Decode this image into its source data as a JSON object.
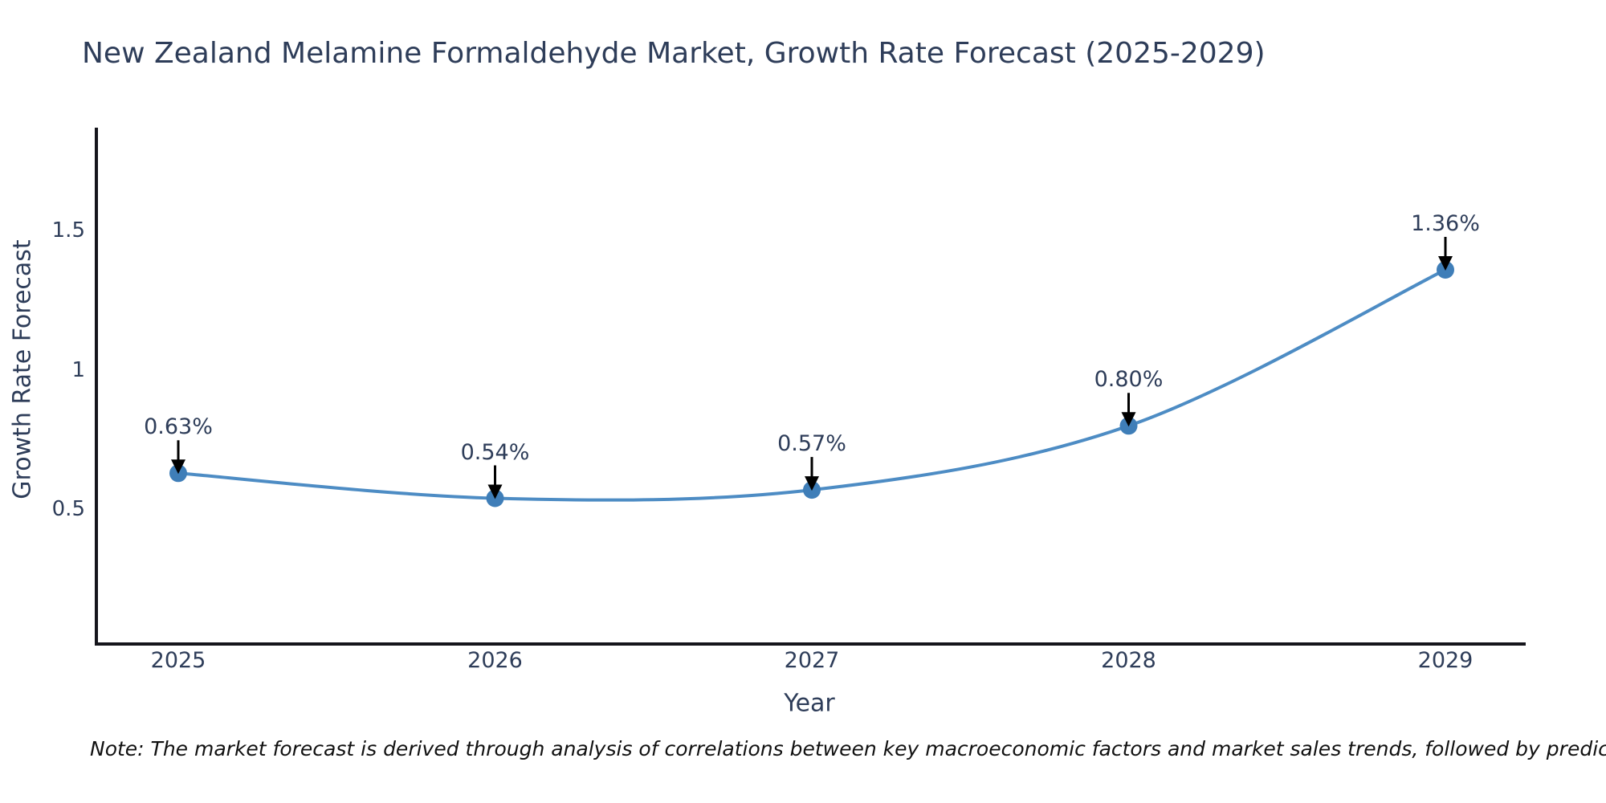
{
  "title": "New Zealand Melamine Formaldehyde Market, Growth Rate Forecast (2025-2029)",
  "note": "Note: The market forecast is derived through analysis of correlations between key macroeconomic factors and market sales trends, followed by predictive modeling to project future sales",
  "colors": {
    "background": "#ffffff",
    "text": "#2e3d59",
    "note_text": "#111111",
    "axis": "#15151c",
    "line": "#4d8cc4",
    "marker": "#3f7eb8",
    "arrow": "#000000"
  },
  "chart_data": {
    "type": "line",
    "title": "New Zealand Melamine Formaldehyde Market, Growth Rate Forecast (2025-2029)",
    "x": [
      2025,
      2026,
      2027,
      2028,
      2029
    ],
    "values": [
      0.63,
      0.54,
      0.57,
      0.8,
      1.36
    ],
    "point_labels": [
      "0.63%",
      "0.54%",
      "0.57%",
      "0.80%",
      "1.36%"
    ],
    "xlabel": "Year",
    "ylabel": "Growth Rate Forecast",
    "xtick_labels": [
      "2025",
      "2026",
      "2027",
      "2028",
      "2029"
    ],
    "yticks": [
      0.5,
      1.0,
      1.5
    ],
    "ytick_labels": [
      "0.5",
      "1",
      "1.5"
    ],
    "ylim": [
      0.02,
      1.87
    ],
    "xlim_years": [
      2024.74,
      2029.25
    ],
    "grid": false,
    "legend": null,
    "line_style": "smooth-spline",
    "marker": "circle",
    "annotations": "value labels with downward black arrows above each point"
  }
}
